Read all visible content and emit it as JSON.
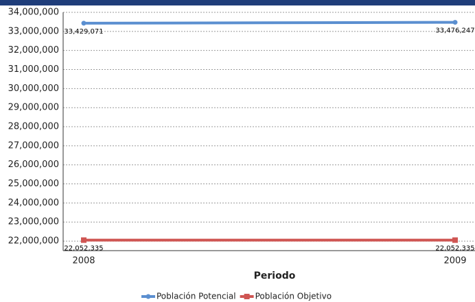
{
  "chart_data": {
    "type": "line",
    "x_label": "Periodo",
    "categories": [
      "2008",
      "2009"
    ],
    "series": [
      {
        "name": "Población Potencial",
        "color": "#5b8fd0",
        "values": [
          33429071,
          33476247
        ],
        "value_labels": [
          "33,429,071",
          "33,476,247"
        ]
      },
      {
        "name": "Población Objetivo",
        "color": "#cf5552",
        "values": [
          22052335,
          22052335
        ],
        "value_labels": [
          "22,052,335",
          "22,052,335"
        ]
      }
    ],
    "ylim": [
      21500000,
      34000000
    ],
    "yticks": [
      {
        "value": 22000000,
        "label": "22,000,000"
      },
      {
        "value": 23000000,
        "label": "23,000,000"
      },
      {
        "value": 24000000,
        "label": "24,000,000"
      },
      {
        "value": 25000000,
        "label": "25,000,000"
      },
      {
        "value": 26000000,
        "label": "26,000,000"
      },
      {
        "value": 27000000,
        "label": "27,000,000"
      },
      {
        "value": 28000000,
        "label": "28,000,000"
      },
      {
        "value": 29000000,
        "label": "29,000,000"
      },
      {
        "value": 30000000,
        "label": "30,000,000"
      },
      {
        "value": 31000000,
        "label": "31,000,000"
      },
      {
        "value": 32000000,
        "label": "32,000,000"
      },
      {
        "value": 33000000,
        "label": "33,000,000"
      },
      {
        "value": 34000000,
        "label": "34,000,000"
      }
    ],
    "grid": true,
    "legend": "bottom"
  }
}
